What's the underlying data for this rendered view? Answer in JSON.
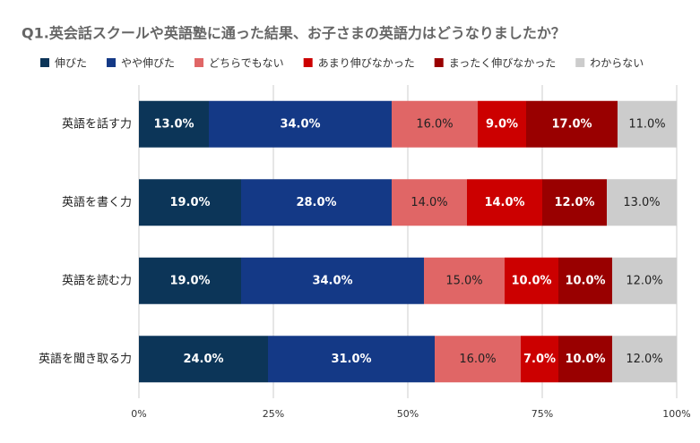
{
  "chart_data": {
    "type": "stacked-bar-horizontal",
    "title": "Q1.英会話スクールや英語塾に通った結果、お子さまの英語力はどうなりましたか？",
    "categories": [
      "英語を話す力",
      "英語を書く力",
      "英語を読む力",
      "英語を聞き取る力"
    ],
    "series": [
      {
        "name": "伸びた",
        "color": "#0c3558",
        "values": [
          13,
          19,
          19,
          24
        ],
        "value_labels": [
          "13.0%",
          "19.0%",
          "19.0%",
          "24.0%"
        ]
      },
      {
        "name": "やや伸びた",
        "color": "#143986",
        "values": [
          34,
          28,
          34,
          31
        ],
        "value_labels": [
          "34.0%",
          "28.0%",
          "34.0%",
          "31.0%"
        ]
      },
      {
        "name": "どちらでもない",
        "color": "#e06666",
        "values": [
          16,
          14,
          15,
          16
        ],
        "value_labels": [
          "16.0%",
          "14.0%",
          "15.0%",
          "16.0%"
        ]
      },
      {
        "name": "あまり伸びなかった",
        "color": "#cc0000",
        "values": [
          9,
          14,
          10,
          7
        ],
        "value_labels": [
          "9.0%",
          "14.0%",
          "10.0%",
          "7.0%"
        ]
      },
      {
        "name": "まったく伸びなかった",
        "color": "#990000",
        "values": [
          17,
          12,
          10,
          10
        ],
        "value_labels": [
          "17.0%",
          "12.0%",
          "10.0%",
          "10.0%"
        ]
      },
      {
        "name": "わからない",
        "color": "#cccccc",
        "values": [
          11,
          13,
          12,
          12
        ],
        "value_labels": [
          "11.0%",
          "13.0%",
          "12.0%",
          "12.0%"
        ]
      }
    ],
    "xlim": [
      0,
      100
    ],
    "xticks": [
      {
        "value": 0,
        "label": "0%"
      },
      {
        "value": 25,
        "label": "25%"
      },
      {
        "value": 50,
        "label": "50%"
      },
      {
        "value": 75,
        "label": "75%"
      },
      {
        "value": 100,
        "label": "100%"
      }
    ],
    "grid": true
  }
}
